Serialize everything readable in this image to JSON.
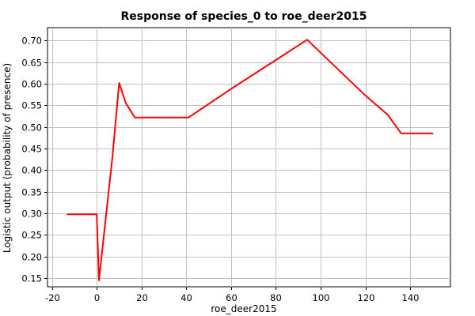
{
  "chart_data": {
    "type": "line",
    "title": "Response of species_0 to roe_deer2015",
    "xlabel": "roe_deer2015",
    "ylabel": "Logistic output (probability of presence)",
    "xlim": [
      -22,
      158
    ],
    "ylim": [
      0.13,
      0.73
    ],
    "xticks": [
      -20,
      0,
      20,
      40,
      60,
      80,
      100,
      120,
      140
    ],
    "yticks": [
      0.15,
      0.2,
      0.25,
      0.3,
      0.35,
      0.4,
      0.45,
      0.5,
      0.55,
      0.6,
      0.65,
      0.7
    ],
    "grid": true,
    "series": [
      {
        "name": "species_0",
        "color": "#ff0000",
        "x": [
          -13,
          0,
          1,
          7,
          10,
          13,
          17,
          20,
          40,
          41,
          60,
          80,
          94,
          100,
          120,
          130,
          136,
          150
        ],
        "y": [
          0.298,
          0.298,
          0.145,
          0.43,
          0.602,
          0.555,
          0.522,
          0.522,
          0.522,
          0.522,
          0.588,
          0.655,
          0.702,
          0.672,
          0.573,
          0.528,
          0.485,
          0.485
        ]
      }
    ]
  }
}
